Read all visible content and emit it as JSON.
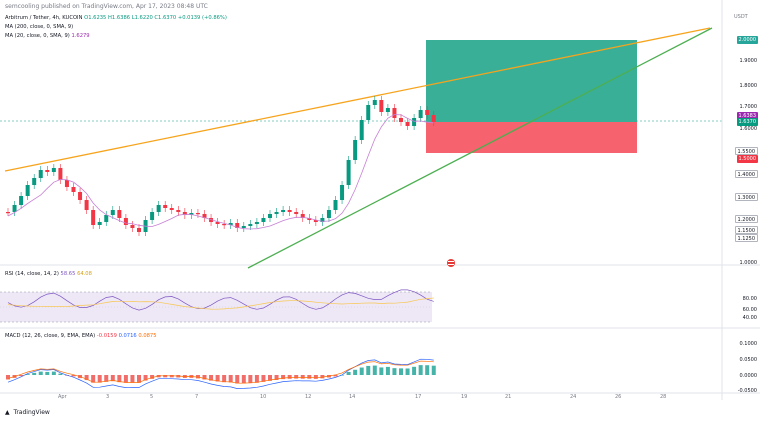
{
  "header": {
    "publish_line": "semcooling published on TradingView.com, Apr 17, 2023 08:48 UTC"
  },
  "legend": {
    "symbol": "Arbitrum / Tether, 4h, KUCOIN",
    "o": "O1.6235",
    "h": "H1.6386",
    "l": "L1.6220",
    "c": "C1.6370",
    "chg": "+0.0139 (+0.86%)",
    "ma1": "MA (200, close, 0, SMA, 9)",
    "ma2": "MA (20, close, 0, SMA, 9)",
    "ma2_val": "1.6279"
  },
  "price_axis": {
    "currency": "USDT",
    "ticks": [
      "1.9000",
      "1.8000",
      "1.7000",
      "1.6000",
      "1.4000",
      "1.3000",
      "1.2000",
      "1.0000"
    ],
    "tags": {
      "target": "2.0000",
      "ma": "1.6383",
      "price": "1.6370",
      "level1": "1.5500",
      "stop": "1.5000",
      "level2": "1.4000",
      "level3": "1.3000",
      "level4": "1.2000",
      "level5": "1.1500",
      "level6": "1.1250"
    }
  },
  "rsi": {
    "label": "RSI (14, close, 14, 2)",
    "val1": "58.65",
    "val2": "64.08",
    "ticks": [
      "80.00",
      "60.00",
      "40.00"
    ]
  },
  "macd": {
    "label": "MACD (12, 26, close, 9, EMA, EMA)",
    "v1": "-0.0159",
    "v2": "0.0716",
    "v3": "0.0875",
    "ticks": [
      "0.1000",
      "0.0500",
      "0.0000",
      "-0.0500"
    ]
  },
  "time_axis": [
    "Apr",
    "3",
    "5",
    "7",
    "10",
    "12",
    "14",
    "17",
    "19",
    "21",
    "24",
    "26",
    "28"
  ],
  "footer": {
    "brand": "TradingView"
  },
  "colors": {
    "up": "#089981",
    "down": "#f23645",
    "orange_line": "#f7a41d",
    "green_line": "#4caf50",
    "ma": "#c77fd6",
    "target_box": "#3aaf97",
    "stop_box": "#f6636f"
  }
}
